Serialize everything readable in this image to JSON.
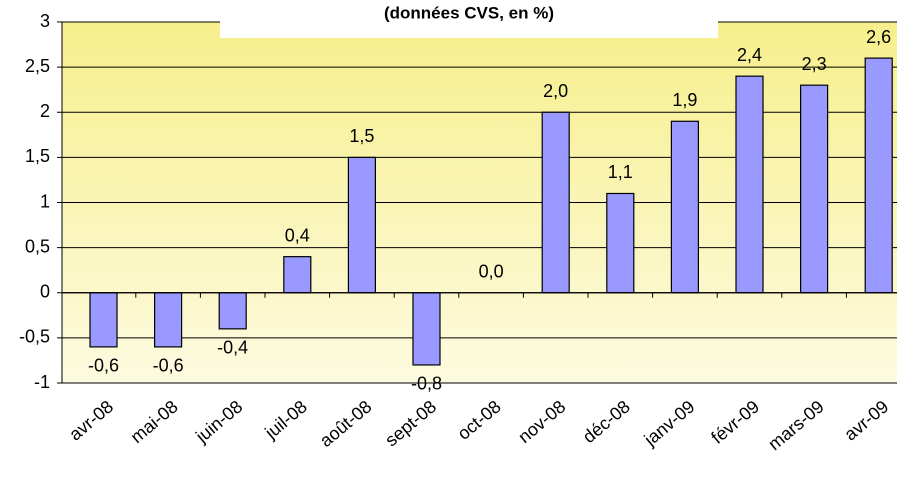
{
  "chart_data": {
    "type": "bar",
    "title": "(données CVS, en %)",
    "categories": [
      "avr-08",
      "mai-08",
      "juin-08",
      "juil-08",
      "août-08",
      "sept-08",
      "oct-08",
      "nov-08",
      "déc-08",
      "janv-09",
      "févr-09",
      "mars-09",
      "avr-09"
    ],
    "values": [
      -0.6,
      -0.6,
      -0.4,
      0.4,
      1.5,
      -0.8,
      0.0,
      2.0,
      1.1,
      1.9,
      2.4,
      2.3,
      2.6
    ],
    "value_labels": [
      "-0,6",
      "-0,6",
      "-0,4",
      "0,4",
      "1,5",
      "-0,8",
      "0,0",
      "2,0",
      "1,1",
      "1,9",
      "2,4",
      "2,3",
      "2,6"
    ],
    "color": "#9999ff",
    "ylim": [
      -1,
      3
    ],
    "yticks": [
      {
        "value": -1,
        "label": "-1"
      },
      {
        "value": -0.5,
        "label": "-0,5"
      },
      0,
      {
        "value": 0.5,
        "label": "0,5"
      },
      1,
      {
        "value": 1.5,
        "label": "1,5"
      },
      2,
      {
        "value": 2.5,
        "label": "2,5"
      },
      3
    ],
    "grid": true
  }
}
